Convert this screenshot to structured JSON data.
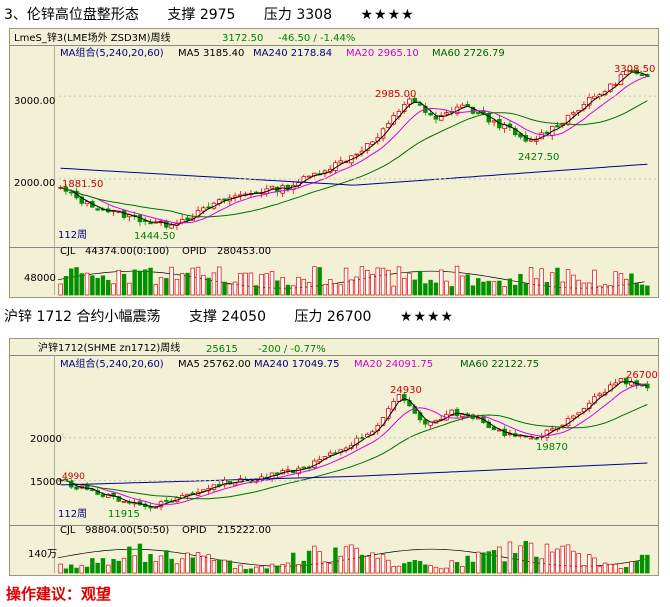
{
  "sections": [
    {
      "heading": "3、伦锌高位盘整形态",
      "support": "支撑 2975",
      "resistance": "压力 3308",
      "stars": "★★★★",
      "chart_header": {
        "symbol": "LmeS_锌3(LME场外 ZSD3M)周线",
        "price": "3172.50",
        "change": "-46.50 / -1.44%"
      },
      "ma_legend": {
        "group": "MA组合(5,240,20,60)",
        "ma5": "MA5 3185.40",
        "ma240": "MA240 2178.84",
        "ma20": "MA20 2965.10",
        "ma60": "MA60 2726.79"
      },
      "volume_legend": {
        "cjl": "CJL",
        "cjl_value": "44374.00(0:100)",
        "opid": "OPID",
        "opid_value": "280453.00"
      },
      "period_label": "112周",
      "y_ticks": [
        "3000.00",
        "2000.00"
      ],
      "volume_tick": "48000",
      "annotations": [
        "3308.50",
        "2985.00",
        "2427.50",
        "1881.50",
        "1444.50"
      ],
      "chart_data": {
        "type": "candlestick",
        "ylim": [
          1300,
          3400
        ],
        "annotated_points": [
          {
            "label": "1881.50",
            "value": 1881.5
          },
          {
            "label": "1444.50",
            "value": 1444.5
          },
          {
            "label": "2985.00",
            "value": 2985
          },
          {
            "label": "2427.50",
            "value": 2427.5
          },
          {
            "label": "3308.50",
            "value": 3308.5
          }
        ],
        "ma240": {
          "start": 2130,
          "mid": 1925,
          "end": 2178.84
        },
        "colors": {
          "up": "#e00000",
          "down": "#009000",
          "ma5": "#000000",
          "ma20": "#dd00dd",
          "ma60": "#007000",
          "ma240": "#000090"
        }
      }
    },
    {
      "heading": "沪锌 1712 合约小幅震荡",
      "support": "支撑 24050",
      "resistance": "压力 26700",
      "stars": "★★★★",
      "chart_header": {
        "symbol": "沪锌1712(SHME zn1712)周线",
        "price": "25615",
        "change": "-200 / -0.77%"
      },
      "ma_legend": {
        "group": "MA组合(5,240,20,60)",
        "ma5": "MA5 25762.00",
        "ma240": "MA240 17049.75",
        "ma20": "MA20 24091.75",
        "ma60": "MA60 22122.75"
      },
      "volume_legend": {
        "cjl": "CJL",
        "cjl_value": "98804.00(50:50)",
        "opid": "OPID",
        "opid_value": "215222.00"
      },
      "period_label": "112周",
      "y_ticks": [
        "20000",
        "15000"
      ],
      "volume_tick": "140万",
      "annotations": [
        "26700",
        "24930",
        "19870",
        "11915",
        "4990"
      ],
      "chart_data": {
        "type": "candlestick",
        "ylim": [
          11000,
          28000
        ],
        "annotated_points": [
          {
            "label": "11915",
            "value": 11915
          },
          {
            "label": "24930",
            "value": 24930
          },
          {
            "label": "19870",
            "value": 19870
          },
          {
            "label": "26700",
            "value": 26700
          }
        ],
        "ma240": {
          "start": 14500,
          "mid": 15500,
          "end": 17049.75
        },
        "colors": {
          "up": "#e00000",
          "down": "#009000",
          "ma5": "#000000",
          "ma20": "#dd00dd",
          "ma60": "#007000",
          "ma240": "#000090"
        }
      }
    }
  ],
  "advice": "操作建议：观望"
}
